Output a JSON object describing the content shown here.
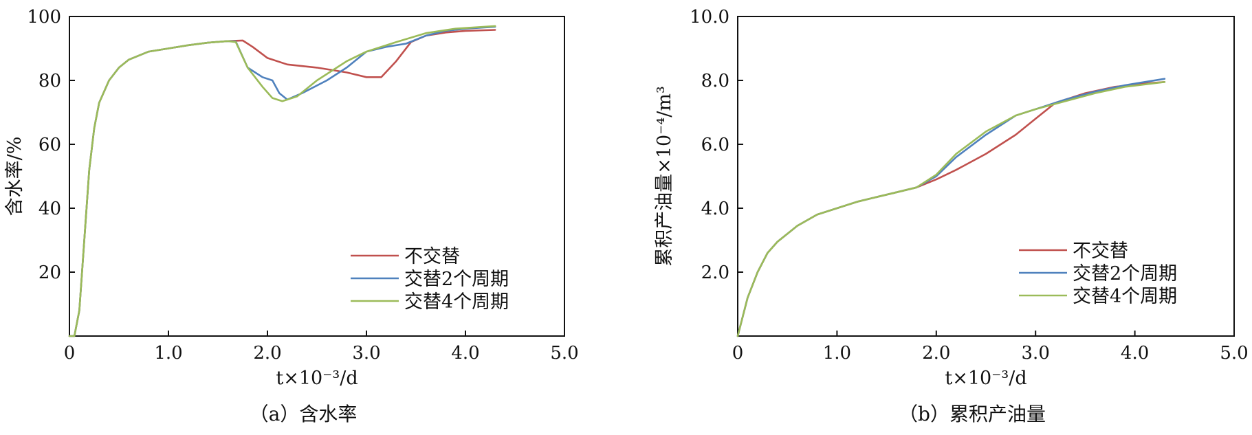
{
  "chart_data": [
    {
      "type": "line",
      "caption": "（a）含水率",
      "xlabel": "t×10⁻³/d",
      "ylabel": "含水率/%",
      "xlim": [
        0,
        5.0
      ],
      "ylim": [
        0,
        100
      ],
      "xticks": [
        {
          "v": 0,
          "label": "0"
        },
        {
          "v": 1.0,
          "label": "1.0"
        },
        {
          "v": 2.0,
          "label": "2.0"
        },
        {
          "v": 3.0,
          "label": "3.0"
        },
        {
          "v": 4.0,
          "label": "4.0"
        },
        {
          "v": 5.0,
          "label": "5.0"
        }
      ],
      "yticks": [
        {
          "v": 20,
          "label": "20"
        },
        {
          "v": 40,
          "label": "40"
        },
        {
          "v": 60,
          "label": "60"
        },
        {
          "v": 80,
          "label": "80"
        },
        {
          "v": 100,
          "label": "100"
        }
      ],
      "legend_position": "bottom-right",
      "series": [
        {
          "name": "不交替",
          "color": "#c0504d",
          "points": [
            [
              0,
              0
            ],
            [
              0.05,
              0
            ],
            [
              0.1,
              8
            ],
            [
              0.15,
              30
            ],
            [
              0.2,
              52
            ],
            [
              0.25,
              65
            ],
            [
              0.3,
              73
            ],
            [
              0.4,
              80
            ],
            [
              0.5,
              84
            ],
            [
              0.6,
              86.5
            ],
            [
              0.8,
              89
            ],
            [
              1.0,
              90
            ],
            [
              1.2,
              91
            ],
            [
              1.4,
              91.8
            ],
            [
              1.6,
              92.3
            ],
            [
              1.75,
              92.5
            ],
            [
              1.85,
              90.5
            ],
            [
              2.0,
              87
            ],
            [
              2.2,
              85
            ],
            [
              2.5,
              84
            ],
            [
              2.8,
              82.5
            ],
            [
              3.0,
              81
            ],
            [
              3.15,
              81
            ],
            [
              3.3,
              86
            ],
            [
              3.45,
              92
            ],
            [
              3.6,
              94
            ],
            [
              3.8,
              95
            ],
            [
              4.0,
              95.5
            ],
            [
              4.3,
              95.8
            ]
          ]
        },
        {
          "name": "交替2个周期",
          "color": "#4f81bd",
          "points": [
            [
              0,
              0
            ],
            [
              0.05,
              0
            ],
            [
              0.1,
              8
            ],
            [
              0.15,
              30
            ],
            [
              0.2,
              52
            ],
            [
              0.25,
              65
            ],
            [
              0.3,
              73
            ],
            [
              0.4,
              80
            ],
            [
              0.5,
              84
            ],
            [
              0.6,
              86.5
            ],
            [
              0.8,
              89
            ],
            [
              1.0,
              90
            ],
            [
              1.2,
              91
            ],
            [
              1.4,
              91.8
            ],
            [
              1.6,
              92.3
            ],
            [
              1.68,
              92.2
            ],
            [
              1.8,
              84
            ],
            [
              1.95,
              81
            ],
            [
              2.05,
              80
            ],
            [
              2.12,
              76
            ],
            [
              2.2,
              74
            ],
            [
              2.35,
              76
            ],
            [
              2.6,
              80
            ],
            [
              2.8,
              84
            ],
            [
              3.0,
              89
            ],
            [
              3.2,
              90.5
            ],
            [
              3.4,
              91.5
            ],
            [
              3.6,
              94
            ],
            [
              3.8,
              95.5
            ],
            [
              4.0,
              96.2
            ],
            [
              4.3,
              96.8
            ]
          ]
        },
        {
          "name": "交替4个周期",
          "color": "#9bbb59",
          "points": [
            [
              0,
              0
            ],
            [
              0.05,
              0
            ],
            [
              0.1,
              8
            ],
            [
              0.15,
              30
            ],
            [
              0.2,
              52
            ],
            [
              0.25,
              65
            ],
            [
              0.3,
              73
            ],
            [
              0.4,
              80
            ],
            [
              0.5,
              84
            ],
            [
              0.6,
              86.5
            ],
            [
              0.8,
              89
            ],
            [
              1.0,
              90
            ],
            [
              1.2,
              91
            ],
            [
              1.4,
              91.8
            ],
            [
              1.6,
              92.3
            ],
            [
              1.68,
              92
            ],
            [
              1.8,
              84
            ],
            [
              1.95,
              78
            ],
            [
              2.05,
              74.5
            ],
            [
              2.15,
              73.5
            ],
            [
              2.3,
              75
            ],
            [
              2.5,
              80
            ],
            [
              2.8,
              86
            ],
            [
              3.0,
              89
            ],
            [
              3.3,
              92
            ],
            [
              3.6,
              94.8
            ],
            [
              3.9,
              96.2
            ],
            [
              4.3,
              97
            ]
          ]
        }
      ]
    },
    {
      "type": "line",
      "caption": "（b）累积产油量",
      "xlabel": "t×10⁻³/d",
      "ylabel": "累积产油量×10⁻⁴/m³",
      "xlim": [
        0,
        5.0
      ],
      "ylim": [
        0,
        10.0
      ],
      "xticks": [
        {
          "v": 0,
          "label": "0"
        },
        {
          "v": 1.0,
          "label": "1.0"
        },
        {
          "v": 2.0,
          "label": "2.0"
        },
        {
          "v": 3.0,
          "label": "3.0"
        },
        {
          "v": 4.0,
          "label": "4.0"
        },
        {
          "v": 5.0,
          "label": "5.0"
        }
      ],
      "yticks": [
        {
          "v": 2.0,
          "label": "2.0"
        },
        {
          "v": 4.0,
          "label": "4.0"
        },
        {
          "v": 6.0,
          "label": "6.0"
        },
        {
          "v": 8.0,
          "label": "8.0"
        },
        {
          "v": 10.0,
          "label": "10.0"
        }
      ],
      "legend_position": "bottom-right",
      "series": [
        {
          "name": "不交替",
          "color": "#c0504d",
          "points": [
            [
              0,
              0
            ],
            [
              0.05,
              0.6
            ],
            [
              0.1,
              1.2
            ],
            [
              0.2,
              2.0
            ],
            [
              0.3,
              2.6
            ],
            [
              0.4,
              2.95
            ],
            [
              0.5,
              3.2
            ],
            [
              0.6,
              3.45
            ],
            [
              0.8,
              3.8
            ],
            [
              1.0,
              4.0
            ],
            [
              1.2,
              4.2
            ],
            [
              1.4,
              4.35
            ],
            [
              1.6,
              4.5
            ],
            [
              1.8,
              4.65
            ],
            [
              2.0,
              4.9
            ],
            [
              2.2,
              5.2
            ],
            [
              2.5,
              5.7
            ],
            [
              2.8,
              6.3
            ],
            [
              3.0,
              6.8
            ],
            [
              3.2,
              7.3
            ],
            [
              3.5,
              7.6
            ],
            [
              3.8,
              7.8
            ],
            [
              4.1,
              7.9
            ],
            [
              4.3,
              7.95
            ]
          ]
        },
        {
          "name": "交替2个周期",
          "color": "#4f81bd",
          "points": [
            [
              0,
              0
            ],
            [
              0.05,
              0.6
            ],
            [
              0.1,
              1.2
            ],
            [
              0.2,
              2.0
            ],
            [
              0.3,
              2.6
            ],
            [
              0.4,
              2.95
            ],
            [
              0.5,
              3.2
            ],
            [
              0.6,
              3.45
            ],
            [
              0.8,
              3.8
            ],
            [
              1.0,
              4.0
            ],
            [
              1.2,
              4.2
            ],
            [
              1.4,
              4.35
            ],
            [
              1.6,
              4.5
            ],
            [
              1.8,
              4.65
            ],
            [
              2.0,
              5.0
            ],
            [
              2.2,
              5.6
            ],
            [
              2.5,
              6.3
            ],
            [
              2.8,
              6.9
            ],
            [
              3.0,
              7.1
            ],
            [
              3.3,
              7.4
            ],
            [
              3.6,
              7.65
            ],
            [
              3.9,
              7.85
            ],
            [
              4.3,
              8.05
            ]
          ]
        },
        {
          "name": "交替4个周期",
          "color": "#9bbb59",
          "points": [
            [
              0,
              0
            ],
            [
              0.05,
              0.6
            ],
            [
              0.1,
              1.2
            ],
            [
              0.2,
              2.0
            ],
            [
              0.3,
              2.6
            ],
            [
              0.4,
              2.95
            ],
            [
              0.5,
              3.2
            ],
            [
              0.6,
              3.45
            ],
            [
              0.8,
              3.8
            ],
            [
              1.0,
              4.0
            ],
            [
              1.2,
              4.2
            ],
            [
              1.4,
              4.35
            ],
            [
              1.6,
              4.5
            ],
            [
              1.8,
              4.65
            ],
            [
              2.0,
              5.05
            ],
            [
              2.2,
              5.7
            ],
            [
              2.5,
              6.4
            ],
            [
              2.8,
              6.9
            ],
            [
              3.0,
              7.1
            ],
            [
              3.3,
              7.35
            ],
            [
              3.6,
              7.6
            ],
            [
              3.9,
              7.8
            ],
            [
              4.3,
              7.95
            ]
          ]
        }
      ]
    }
  ]
}
